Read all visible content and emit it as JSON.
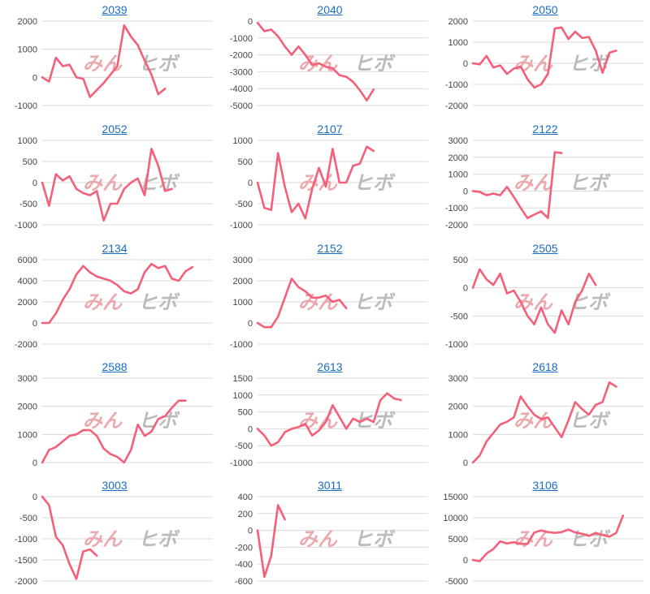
{
  "colors": {
    "line": "#f4607a",
    "title": "#1a6ec2",
    "grid": "#d9d9d9",
    "watermark_left": "#e8a0a4",
    "watermark_right": "#b4b4b4"
  },
  "watermark": {
    "left": "みん",
    "right": "ヒボ"
  },
  "chart_data": [
    {
      "type": "line",
      "title": "2039",
      "yticks": [
        2000,
        1000,
        0,
        -1000
      ],
      "ylim": [
        -1000,
        2000
      ],
      "values": [
        0,
        -150,
        700,
        400,
        450,
        0,
        -50,
        -700,
        -450,
        -200,
        100,
        400,
        1850,
        1450,
        1150,
        600,
        100,
        -600,
        -400
      ]
    },
    {
      "type": "line",
      "title": "2040",
      "yticks": [
        0,
        -1000,
        -2000,
        -3000,
        -4000,
        -5000
      ],
      "ylim": [
        -5000,
        0
      ],
      "values": [
        -100,
        -600,
        -500,
        -900,
        -1500,
        -2000,
        -1500,
        -2000,
        -2600,
        -2500,
        -2700,
        -2800,
        -3200,
        -3300,
        -3600,
        -4100,
        -4700,
        -4050
      ]
    },
    {
      "type": "line",
      "title": "2050",
      "yticks": [
        2000,
        1000,
        0,
        -1000,
        -2000
      ],
      "ylim": [
        -2000,
        2000
      ],
      "values": [
        0,
        -50,
        350,
        -200,
        -100,
        -500,
        -250,
        -150,
        -750,
        -1150,
        -1000,
        -500,
        1650,
        1700,
        1150,
        1500,
        1200,
        1250,
        600,
        -450,
        500,
        600
      ]
    },
    {
      "type": "line",
      "title": "2052",
      "yticks": [
        1000,
        500,
        0,
        -500,
        -1000
      ],
      "ylim": [
        -1000,
        1000
      ],
      "values": [
        0,
        -550,
        200,
        50,
        150,
        -150,
        -250,
        -300,
        -200,
        -900,
        -500,
        -500,
        -150,
        0,
        100,
        -300,
        800,
        400,
        -200,
        -150
      ]
    },
    {
      "type": "line",
      "title": "2107",
      "yticks": [
        1000,
        500,
        0,
        -500,
        -1000
      ],
      "ylim": [
        -1000,
        1000
      ],
      "values": [
        0,
        -600,
        -650,
        700,
        -100,
        -700,
        -500,
        -850,
        -150,
        350,
        -100,
        800,
        0,
        0,
        400,
        450,
        850,
        750
      ]
    },
    {
      "type": "line",
      "title": "2122",
      "yticks": [
        3000,
        2000,
        1000,
        0,
        -1000,
        -2000
      ],
      "ylim": [
        -2000,
        3000
      ],
      "values": [
        0,
        -50,
        -250,
        -150,
        -250,
        250,
        -350,
        -1000,
        -1600,
        -1400,
        -1200,
        -1600,
        2300,
        2250
      ]
    },
    {
      "type": "line",
      "title": "2134",
      "yticks": [
        6000,
        4000,
        2000,
        0,
        -2000
      ],
      "ylim": [
        -2000,
        6000
      ],
      "values": [
        0,
        0,
        900,
        2200,
        3200,
        4600,
        5400,
        4800,
        4400,
        4200,
        4000,
        3600,
        3000,
        2800,
        3200,
        4800,
        5600,
        5200,
        5400,
        4200,
        4000,
        4900,
        5300
      ]
    },
    {
      "type": "line",
      "title": "2152",
      "yticks": [
        3000,
        2000,
        1000,
        0,
        -1000
      ],
      "ylim": [
        -1000,
        3000
      ],
      "values": [
        0,
        -200,
        -200,
        300,
        1200,
        2100,
        1700,
        1500,
        1200,
        1200,
        1300,
        1000,
        1100,
        700
      ]
    },
    {
      "type": "line",
      "title": "2505",
      "yticks": [
        500,
        0,
        -500,
        -1000
      ],
      "ylim": [
        -1000,
        500
      ],
      "values": [
        0,
        330,
        150,
        50,
        250,
        -100,
        -50,
        -250,
        -500,
        -650,
        -350,
        -650,
        -800,
        -400,
        -650,
        -250,
        -50,
        250,
        50
      ]
    },
    {
      "type": "line",
      "title": "2588",
      "yticks": [
        3000,
        2000,
        1000,
        0
      ],
      "ylim": [
        0,
        3000
      ],
      "values": [
        0,
        450,
        550,
        750,
        950,
        1000,
        1150,
        1150,
        950,
        500,
        300,
        200,
        0,
        450,
        1350,
        950,
        1100,
        1550,
        1650,
        1950,
        2200,
        2200
      ]
    },
    {
      "type": "line",
      "title": "2613",
      "yticks": [
        1500,
        1000,
        500,
        0,
        -500,
        -1000
      ],
      "ylim": [
        -1000,
        1500
      ],
      "values": [
        0,
        -200,
        -500,
        -400,
        -100,
        0,
        50,
        150,
        -200,
        -50,
        200,
        700,
        350,
        0,
        300,
        200,
        300,
        200,
        850,
        1050,
        900,
        850
      ]
    },
    {
      "type": "line",
      "title": "2618",
      "yticks": [
        3000,
        2000,
        1000,
        0
      ],
      "ylim": [
        0,
        3000
      ],
      "values": [
        0,
        250,
        750,
        1050,
        1350,
        1450,
        1600,
        2350,
        2000,
        1700,
        1550,
        1600,
        1250,
        900,
        1500,
        2150,
        1900,
        1700,
        2050,
        2150,
        2850,
        2700
      ]
    },
    {
      "type": "line",
      "title": "3003",
      "yticks": [
        0,
        -500,
        -1000,
        -1500,
        -2000
      ],
      "ylim": [
        -2000,
        0
      ],
      "values": [
        0,
        -200,
        -950,
        -1150,
        -1600,
        -1950,
        -1300,
        -1250,
        -1400
      ]
    },
    {
      "type": "line",
      "title": "3011",
      "yticks": [
        400,
        200,
        0,
        -200,
        -400,
        -600
      ],
      "ylim": [
        -600,
        400
      ],
      "values": [
        0,
        -550,
        -300,
        300,
        130
      ]
    },
    {
      "type": "line",
      "title": "3106",
      "yticks": [
        15000,
        10000,
        5000,
        0,
        -5000
      ],
      "ylim": [
        -5000,
        15000
      ],
      "values": [
        0,
        -300,
        1500,
        2600,
        4400,
        3900,
        4200,
        3800,
        3800,
        6500,
        7000,
        6600,
        6400,
        6600,
        7200,
        6500,
        6200,
        5700,
        6400,
        5900,
        5500,
        6400,
        10500
      ]
    }
  ]
}
